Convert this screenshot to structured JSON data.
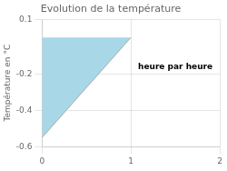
{
  "chart_data": {
    "type": "area",
    "title": "Evolution de la température",
    "ylabel": "Température en °C",
    "series": [
      {
        "type": "area",
        "x": [
          0,
          0,
          1
        ],
        "values": [
          0,
          -0.55,
          0
        ],
        "color": "#a8d8e8"
      },
      {
        "type": "line",
        "x": [
          0,
          1
        ],
        "values": [
          -0.55,
          0
        ],
        "color": "#aaaaaa"
      }
    ],
    "annotations": [
      {
        "text": "heure par heure",
        "x": 1.08,
        "y": -0.16
      }
    ],
    "xlim": [
      0,
      2
    ],
    "ylim": [
      -0.6,
      0.1
    ],
    "xticks": [
      0,
      1,
      2
    ],
    "yticks": [
      0.1,
      -0.2,
      -0.4,
      -0.6
    ],
    "grid": true
  }
}
